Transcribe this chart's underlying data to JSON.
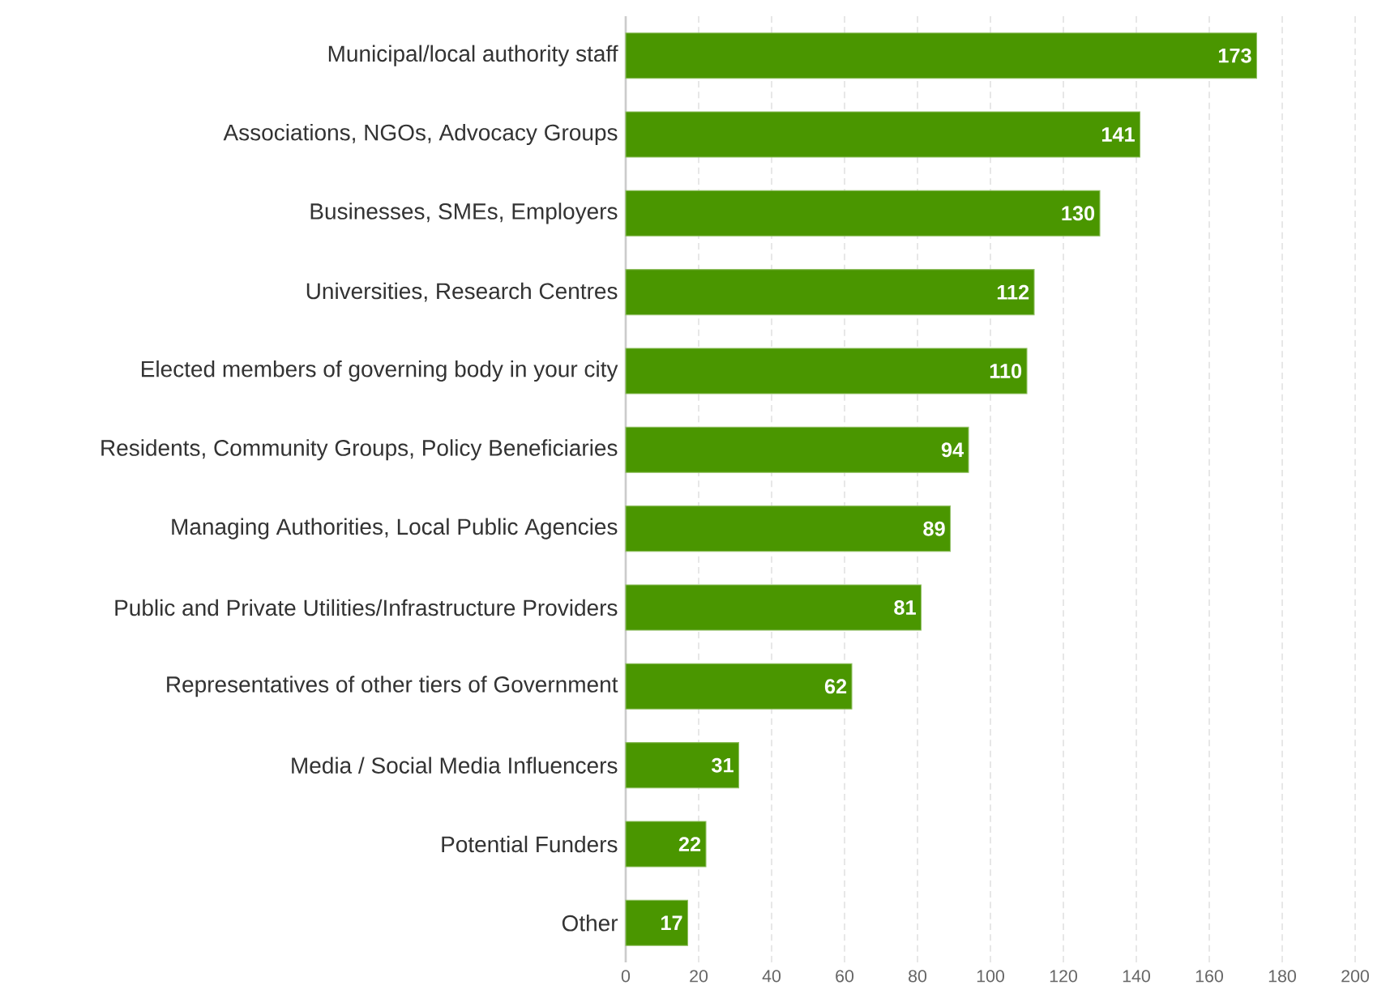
{
  "chart_data": {
    "type": "bar",
    "orientation": "horizontal",
    "categories": [
      "Municipal/local authority staff",
      "Associations, NGOs, Advocacy Groups",
      "Businesses, SMEs, Employers",
      "Universities, Research Centres",
      "Elected members of governing body in your city",
      "Residents, Community Groups, Policy Beneficiaries",
      "Managing Authorities, Local Public Agencies",
      "Public and Private Utilities/Infrastructure Providers",
      "Representatives of other tiers of Government",
      "Media / Social Media Influencers",
      "Potential Funders",
      "Other"
    ],
    "values": [
      173,
      141,
      130,
      112,
      110,
      94,
      89,
      81,
      62,
      31,
      22,
      17
    ],
    "color": "#4a9600",
    "xlim": [
      0,
      200
    ],
    "xticks": [
      0,
      20,
      40,
      60,
      80,
      100,
      120,
      140,
      160,
      180,
      200
    ],
    "grid": "x",
    "data_labels": true
  }
}
